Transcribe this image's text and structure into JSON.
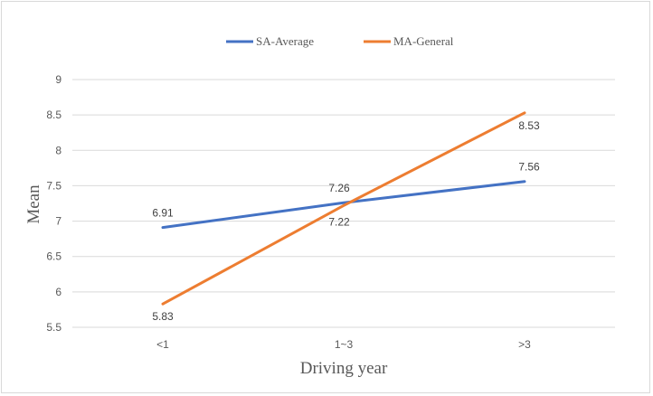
{
  "chart_data": {
    "type": "line",
    "categories": [
      "<1",
      "1~3",
      ">3"
    ],
    "series": [
      {
        "name": "SA-Average",
        "values": [
          6.91,
          7.26,
          7.56
        ],
        "color": "#4472c4"
      },
      {
        "name": "MA-General",
        "values": [
          5.83,
          7.22,
          8.53
        ],
        "color": "#ed7d31"
      }
    ],
    "data_labels": [
      [
        "6.91",
        "7.26",
        "7.56"
      ],
      [
        "5.83",
        "7.22",
        "8.53"
      ]
    ],
    "xlabel": "Driving year",
    "ylabel": "Mean",
    "ylim": [
      5.5,
      9
    ],
    "yticks": [
      "5.5",
      "6",
      "6.5",
      "7",
      "7.5",
      "8",
      "8.5",
      "9"
    ],
    "grid": true,
    "legend_position": "top-center"
  }
}
